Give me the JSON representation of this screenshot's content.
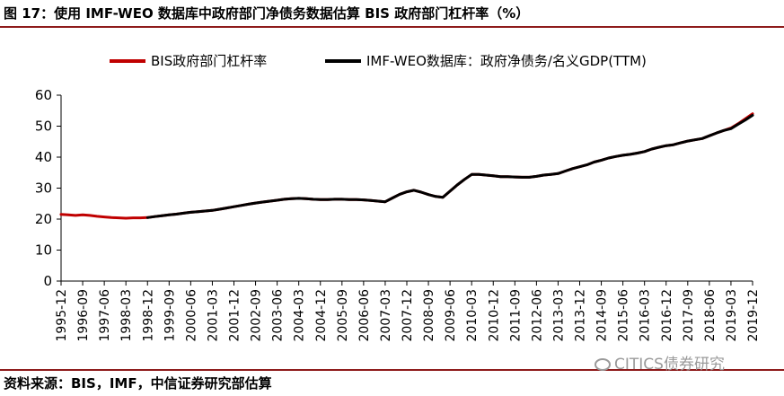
{
  "figure": {
    "title": "图 17：使用 IMF-WEO 数据库中政府部门净债务数据估算 BIS 政府部门杠杆率（%）",
    "source": "资料来源：BIS，IMF，中信证券研究部估算",
    "watermark": "CITICS债券研究"
  },
  "colors": {
    "rule": "#8e1b1b",
    "bis_series": "#c00000",
    "imf_series": "#000000",
    "axis": "#000000"
  },
  "chart_data": {
    "type": "line",
    "x_ticks": [
      "1995-12",
      "1996-09",
      "1997-06",
      "1998-03",
      "1998-12",
      "1999-09",
      "2000-06",
      "2001-03",
      "2001-12",
      "2002-09",
      "2003-06",
      "2004-03",
      "2004-12",
      "2005-09",
      "2006-06",
      "2007-03",
      "2007-12",
      "2008-09",
      "2009-06",
      "2010-03",
      "2010-12",
      "2011-09",
      "2012-06",
      "2013-03",
      "2013-12",
      "2014-09",
      "2015-06",
      "2016-03",
      "2016-12",
      "2017-09",
      "2018-06",
      "2019-03",
      "2019-12"
    ],
    "y_ticks": [
      "60",
      "50",
      "40",
      "30",
      "20",
      "10",
      "0"
    ],
    "ylim": [
      0,
      60
    ],
    "grid": false,
    "legend_position": "top",
    "series": [
      {
        "name": "BIS政府部门杠杆率",
        "color": "#c00000",
        "x": [
          "1995-12",
          "1996-03",
          "1996-06",
          "1996-09",
          "1996-12",
          "1997-03",
          "1997-06",
          "1997-09",
          "1997-12",
          "1998-03",
          "1998-06",
          "1998-09",
          "1998-12",
          "1999-03",
          "1999-06",
          "1999-09",
          "1999-12",
          "2000-03",
          "2000-06",
          "2000-09",
          "2000-12",
          "2001-03",
          "2001-06",
          "2001-09",
          "2001-12",
          "2002-03",
          "2002-06",
          "2002-09",
          "2002-12",
          "2003-03",
          "2003-06",
          "2003-09",
          "2003-12",
          "2004-03",
          "2004-06",
          "2004-09",
          "2004-12",
          "2005-03",
          "2005-06",
          "2005-09",
          "2005-12",
          "2006-03",
          "2006-06",
          "2006-09",
          "2006-12",
          "2007-03",
          "2007-06",
          "2007-09",
          "2007-12",
          "2008-03",
          "2008-06",
          "2008-09",
          "2008-12",
          "2009-03",
          "2009-06",
          "2009-09",
          "2009-12",
          "2010-03",
          "2010-06",
          "2010-09",
          "2010-12",
          "2011-03",
          "2011-06",
          "2011-09",
          "2011-12",
          "2012-03",
          "2012-06",
          "2012-09",
          "2012-12",
          "2013-03",
          "2013-06",
          "2013-09",
          "2013-12",
          "2014-03",
          "2014-06",
          "2014-09",
          "2014-12",
          "2015-03",
          "2015-06",
          "2015-09",
          "2015-12",
          "2016-03",
          "2016-06",
          "2016-09",
          "2016-12",
          "2017-03",
          "2017-06",
          "2017-09",
          "2017-12",
          "2018-03",
          "2018-06",
          "2018-09",
          "2018-12",
          "2019-03",
          "2019-06",
          "2019-09",
          "2019-12"
        ],
        "values": [
          21.5,
          21.4,
          21.2,
          21.4,
          21.2,
          20.9,
          20.7,
          20.5,
          20.4,
          20.3,
          20.4,
          20.4,
          20.5,
          20.8,
          21.1,
          21.4,
          21.6,
          21.9,
          22.2,
          22.4,
          22.6,
          22.8,
          23.2,
          23.6,
          24.0,
          24.4,
          24.8,
          25.2,
          25.5,
          25.8,
          26.1,
          26.4,
          26.6,
          26.7,
          26.6,
          26.4,
          26.3,
          26.3,
          26.4,
          26.4,
          26.3,
          26.3,
          26.2,
          26.0,
          25.8,
          25.6,
          26.8,
          28.0,
          28.8,
          29.3,
          28.7,
          27.9,
          27.3,
          27.0,
          29.0,
          31.0,
          32.8,
          34.4,
          34.4,
          34.2,
          34.0,
          33.7,
          33.7,
          33.6,
          33.5,
          33.5,
          33.8,
          34.2,
          34.4,
          34.7,
          35.5,
          36.3,
          36.9,
          37.5,
          38.4,
          39.0,
          39.7,
          40.2,
          40.6,
          40.9,
          41.3,
          41.8,
          42.6,
          43.2,
          43.7,
          44.0,
          44.6,
          45.2,
          45.6,
          46.0,
          46.9,
          47.8,
          48.6,
          49.4,
          50.8,
          52.4,
          54.0
        ]
      },
      {
        "name": "IMF-WEO数据库：政府净债务/名义GDP(TTM)",
        "color": "#000000",
        "x": [
          "1998-12",
          "1999-03",
          "1999-06",
          "1999-09",
          "1999-12",
          "2000-03",
          "2000-06",
          "2000-09",
          "2000-12",
          "2001-03",
          "2001-06",
          "2001-09",
          "2001-12",
          "2002-03",
          "2002-06",
          "2002-09",
          "2002-12",
          "2003-03",
          "2003-06",
          "2003-09",
          "2003-12",
          "2004-03",
          "2004-06",
          "2004-09",
          "2004-12",
          "2005-03",
          "2005-06",
          "2005-09",
          "2005-12",
          "2006-03",
          "2006-06",
          "2006-09",
          "2006-12",
          "2007-03",
          "2007-06",
          "2007-09",
          "2007-12",
          "2008-03",
          "2008-06",
          "2008-09",
          "2008-12",
          "2009-03",
          "2009-06",
          "2009-09",
          "2009-12",
          "2010-03",
          "2010-06",
          "2010-09",
          "2010-12",
          "2011-03",
          "2011-06",
          "2011-09",
          "2011-12",
          "2012-03",
          "2012-06",
          "2012-09",
          "2012-12",
          "2013-03",
          "2013-06",
          "2013-09",
          "2013-12",
          "2014-03",
          "2014-06",
          "2014-09",
          "2014-12",
          "2015-03",
          "2015-06",
          "2015-09",
          "2015-12",
          "2016-03",
          "2016-06",
          "2016-09",
          "2016-12",
          "2017-03",
          "2017-06",
          "2017-09",
          "2017-12",
          "2018-03",
          "2018-06",
          "2018-09",
          "2018-12",
          "2019-03",
          "2019-06",
          "2019-09",
          "2019-12"
        ],
        "values": [
          20.5,
          20.8,
          21.1,
          21.4,
          21.6,
          21.9,
          22.2,
          22.4,
          22.6,
          22.8,
          23.2,
          23.6,
          24.0,
          24.4,
          24.8,
          25.2,
          25.5,
          25.8,
          26.1,
          26.4,
          26.6,
          26.7,
          26.6,
          26.4,
          26.3,
          26.3,
          26.4,
          26.4,
          26.3,
          26.3,
          26.2,
          26.0,
          25.8,
          25.6,
          26.8,
          28.0,
          28.8,
          29.3,
          28.7,
          27.9,
          27.3,
          27.0,
          29.0,
          31.0,
          32.8,
          34.4,
          34.4,
          34.2,
          34.0,
          33.7,
          33.7,
          33.6,
          33.5,
          33.5,
          33.8,
          34.2,
          34.4,
          34.7,
          35.5,
          36.3,
          36.9,
          37.5,
          38.4,
          39.0,
          39.7,
          40.2,
          40.6,
          40.9,
          41.3,
          41.8,
          42.6,
          43.2,
          43.7,
          44.0,
          44.6,
          45.2,
          45.6,
          46.0,
          46.9,
          47.8,
          48.6,
          49.2,
          50.6,
          52.0,
          53.5
        ]
      }
    ]
  }
}
